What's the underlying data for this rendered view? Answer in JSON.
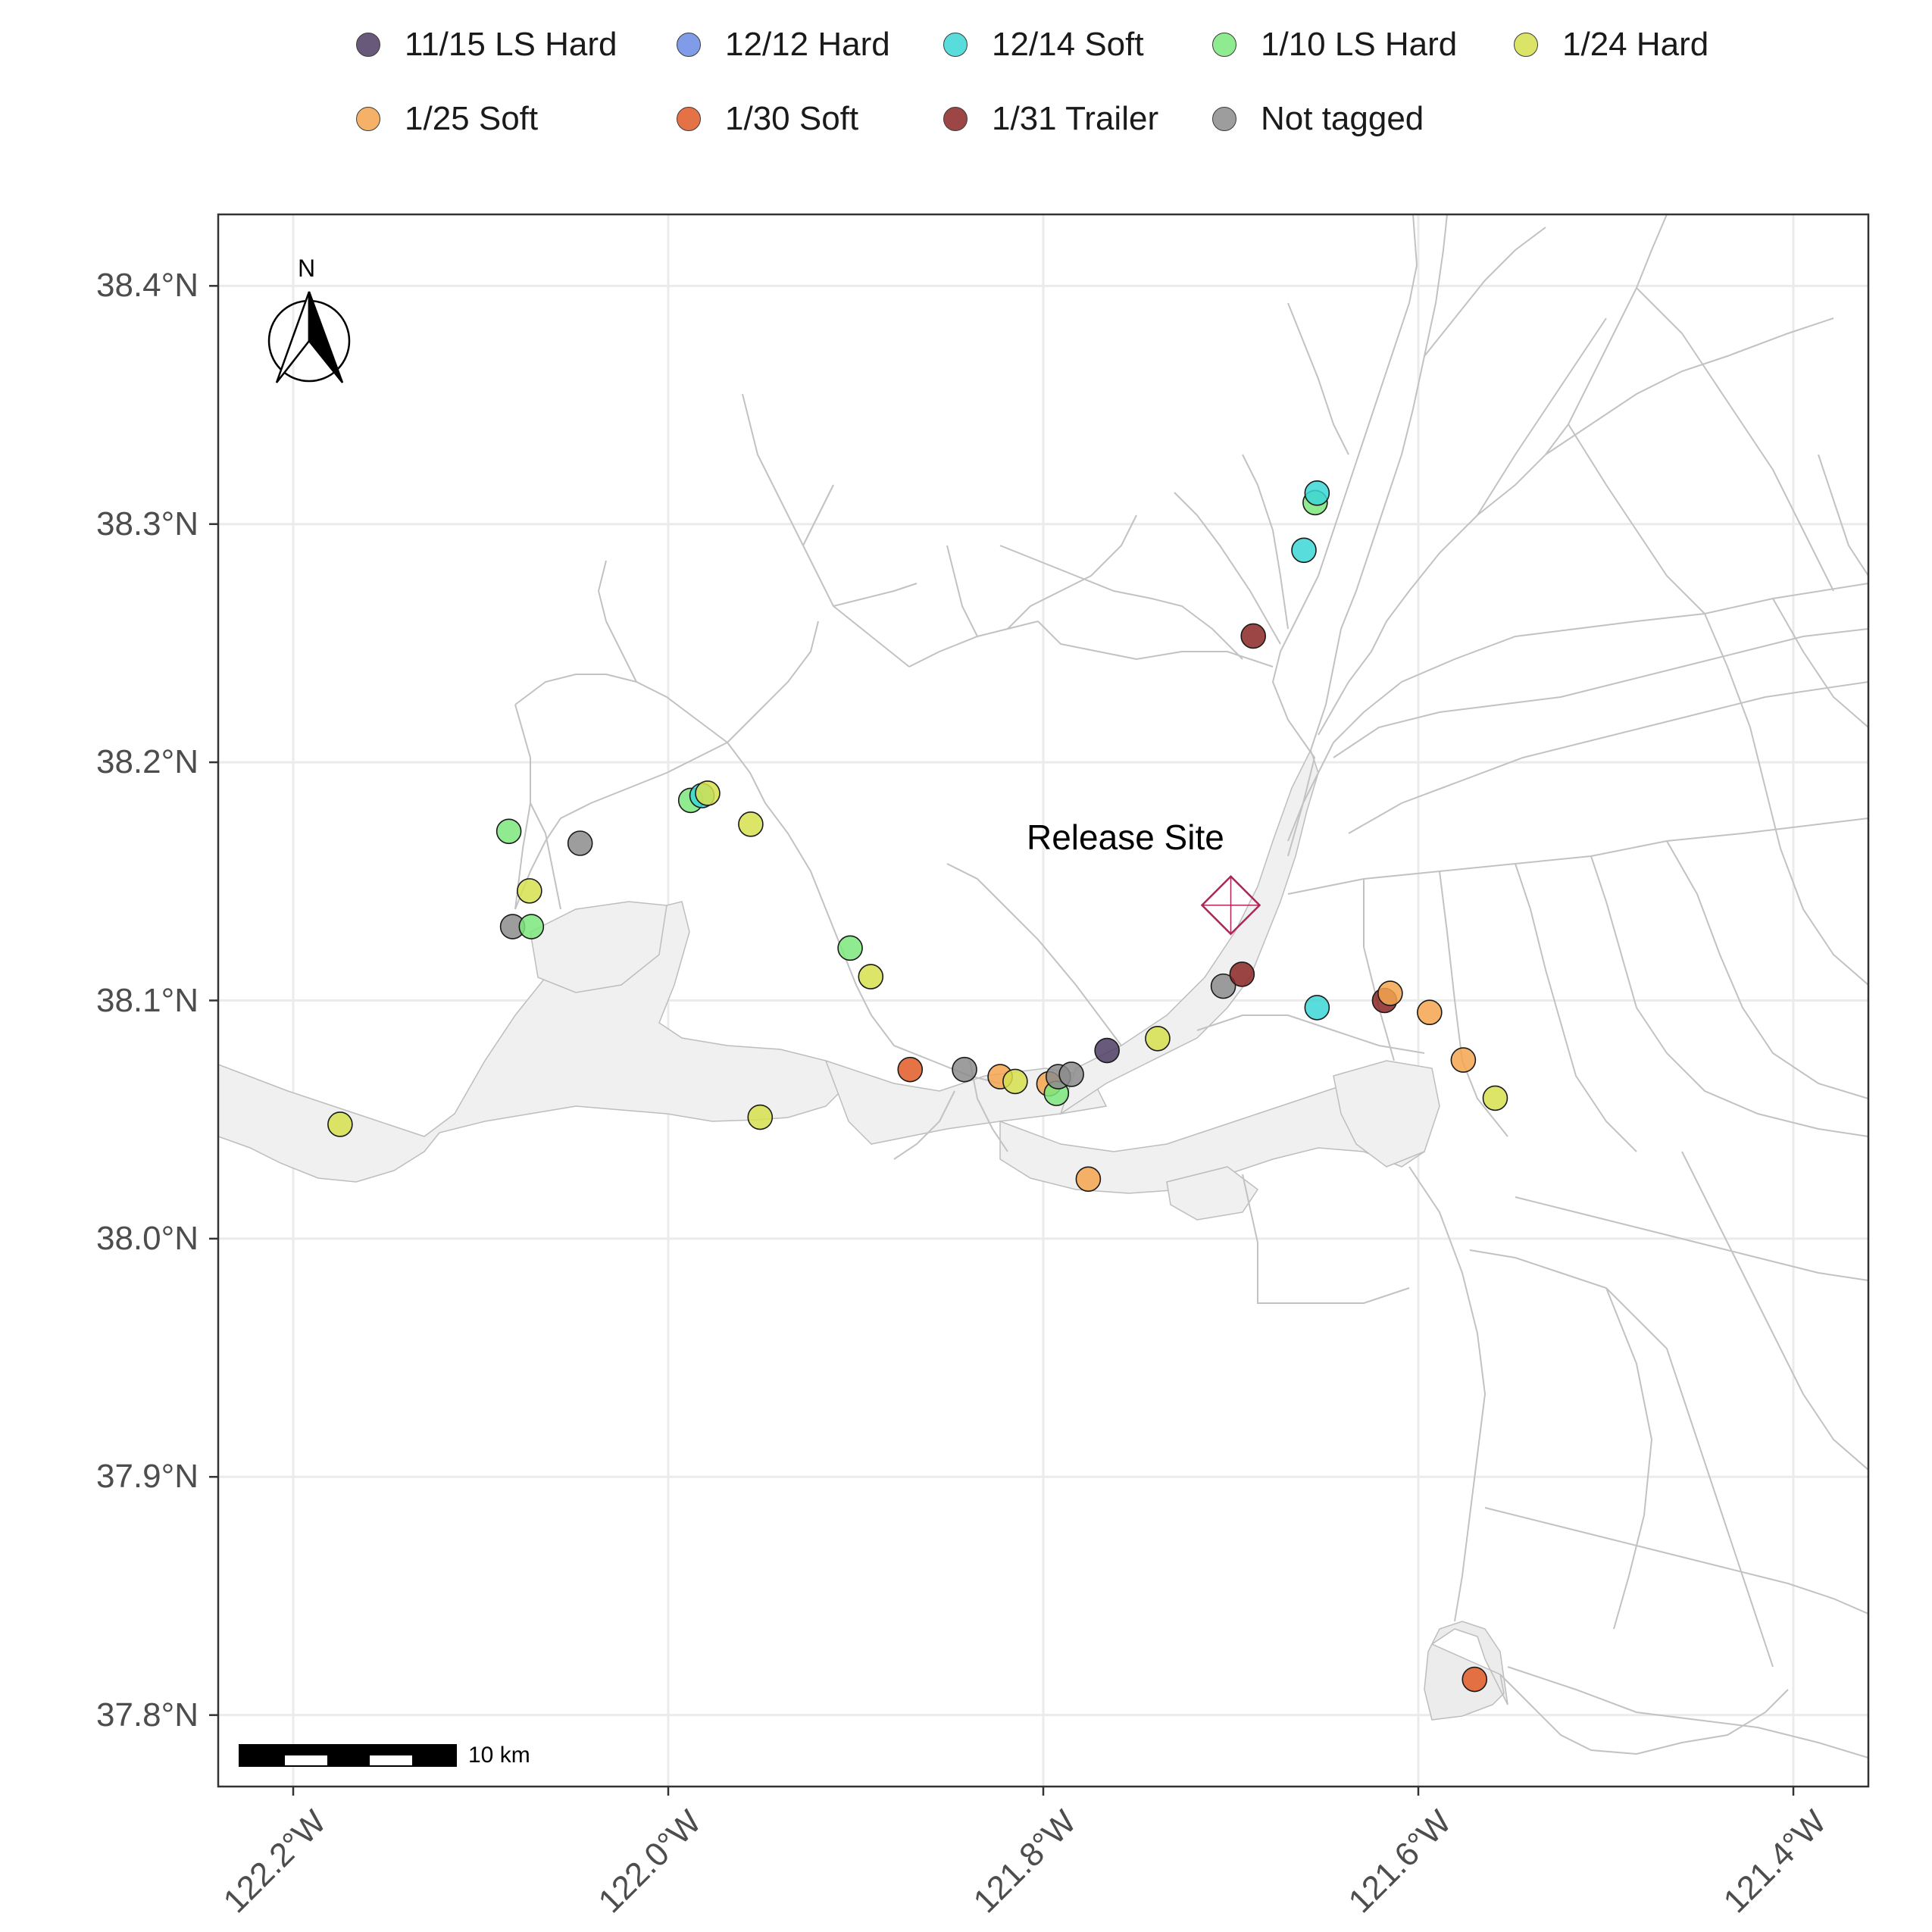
{
  "legend": {
    "row1": [
      {
        "label": "11/15 LS Hard",
        "color": "#4e3d63"
      },
      {
        "label": "12/12 Hard",
        "color": "#6b8be6"
      },
      {
        "label": "12/14 Soft",
        "color": "#3cd6d6"
      },
      {
        "label": "1/10 LS Hard",
        "color": "#7ce87c"
      },
      {
        "label": "1/24 Hard",
        "color": "#d6e04d"
      }
    ],
    "row2": [
      {
        "label": "1/25 Soft",
        "color": "#f5a44f"
      },
      {
        "label": "1/30 Soft",
        "color": "#e05a26"
      },
      {
        "label": "1/31 Trailer",
        "color": "#8b2626"
      },
      {
        "label": "Not tagged",
        "color": "#8c8c8c"
      }
    ]
  },
  "axes": {
    "y_ticks": [
      "38.4°N",
      "38.3°N",
      "38.2°N",
      "38.1°N",
      "38.0°N",
      "37.9°N",
      "37.8°N"
    ],
    "y_values": [
      38.4,
      38.3,
      38.2,
      38.1,
      38.0,
      37.9,
      37.8
    ],
    "x_ticks": [
      "122.2°W",
      "122.0°W",
      "121.8°W",
      "121.6°W",
      "121.4°W"
    ],
    "x_values": [
      -122.2,
      -122.0,
      -121.8,
      -121.6,
      -121.4
    ],
    "lon_range": [
      -122.24,
      -121.36
    ],
    "lat_range": [
      37.77,
      38.43
    ]
  },
  "annotations": {
    "release_site_label": "Release Site",
    "release_site": {
      "lon": -121.7,
      "lat": 38.14
    },
    "scale_bar_label": "10 km",
    "north_label": "N"
  },
  "chart_data": {
    "type": "scatter",
    "points": [
      {
        "lon": -121.57,
        "lat": 37.815,
        "group": "1/30 Soft"
      },
      {
        "lon": -122.175,
        "lat": 38.048,
        "group": "1/24 Hard"
      },
      {
        "lon": -121.951,
        "lat": 38.051,
        "group": "1/24 Hard"
      },
      {
        "lon": -121.776,
        "lat": 38.025,
        "group": "1/25 Soft"
      },
      {
        "lon": -122.085,
        "lat": 38.171,
        "group": "1/10 LS Hard"
      },
      {
        "lon": -122.047,
        "lat": 38.166,
        "group": "Not tagged"
      },
      {
        "lon": -122.074,
        "lat": 38.146,
        "group": "1/24 Hard"
      },
      {
        "lon": -122.083,
        "lat": 38.131,
        "group": "Not tagged"
      },
      {
        "lon": -122.073,
        "lat": 38.131,
        "group": "1/10 LS Hard"
      },
      {
        "lon": -121.988,
        "lat": 38.184,
        "group": "1/10 LS Hard"
      },
      {
        "lon": -121.982,
        "lat": 38.186,
        "group": "12/14 Soft"
      },
      {
        "lon": -121.979,
        "lat": 38.187,
        "group": "1/24 Hard"
      },
      {
        "lon": -121.956,
        "lat": 38.174,
        "group": "1/24 Hard"
      },
      {
        "lon": -121.903,
        "lat": 38.122,
        "group": "1/10 LS Hard"
      },
      {
        "lon": -121.892,
        "lat": 38.11,
        "group": "1/24 Hard"
      },
      {
        "lon": -121.871,
        "lat": 38.071,
        "group": "1/30 Soft"
      },
      {
        "lon": -121.842,
        "lat": 38.071,
        "group": "Not tagged"
      },
      {
        "lon": -121.823,
        "lat": 38.068,
        "group": "1/25 Soft"
      },
      {
        "lon": -121.815,
        "lat": 38.066,
        "group": "1/24 Hard"
      },
      {
        "lon": -121.797,
        "lat": 38.065,
        "group": "1/25 Soft"
      },
      {
        "lon": -121.793,
        "lat": 38.061,
        "group": "1/10 LS Hard"
      },
      {
        "lon": -121.792,
        "lat": 38.068,
        "group": "Not tagged"
      },
      {
        "lon": -121.785,
        "lat": 38.069,
        "group": "Not tagged"
      },
      {
        "lon": -121.766,
        "lat": 38.079,
        "group": "11/15 LS Hard"
      },
      {
        "lon": -121.739,
        "lat": 38.084,
        "group": "1/24 Hard"
      },
      {
        "lon": -121.704,
        "lat": 38.106,
        "group": "Not tagged"
      },
      {
        "lon": -121.694,
        "lat": 38.111,
        "group": "1/31 Trailer"
      },
      {
        "lon": -121.688,
        "lat": 38.253,
        "group": "1/31 Trailer"
      },
      {
        "lon": -121.661,
        "lat": 38.289,
        "group": "12/14 Soft"
      },
      {
        "lon": -121.655,
        "lat": 38.309,
        "group": "1/10 LS Hard"
      },
      {
        "lon": -121.654,
        "lat": 38.313,
        "group": "12/14 Soft"
      },
      {
        "lon": -121.654,
        "lat": 38.097,
        "group": "12/14 Soft"
      },
      {
        "lon": -121.618,
        "lat": 38.1,
        "group": "1/31 Trailer"
      },
      {
        "lon": -121.615,
        "lat": 38.103,
        "group": "1/25 Soft"
      },
      {
        "lon": -121.594,
        "lat": 38.095,
        "group": "1/25 Soft"
      },
      {
        "lon": -121.576,
        "lat": 38.075,
        "group": "1/25 Soft"
      },
      {
        "lon": -121.559,
        "lat": 38.059,
        "group": "1/24 Hard"
      }
    ]
  }
}
